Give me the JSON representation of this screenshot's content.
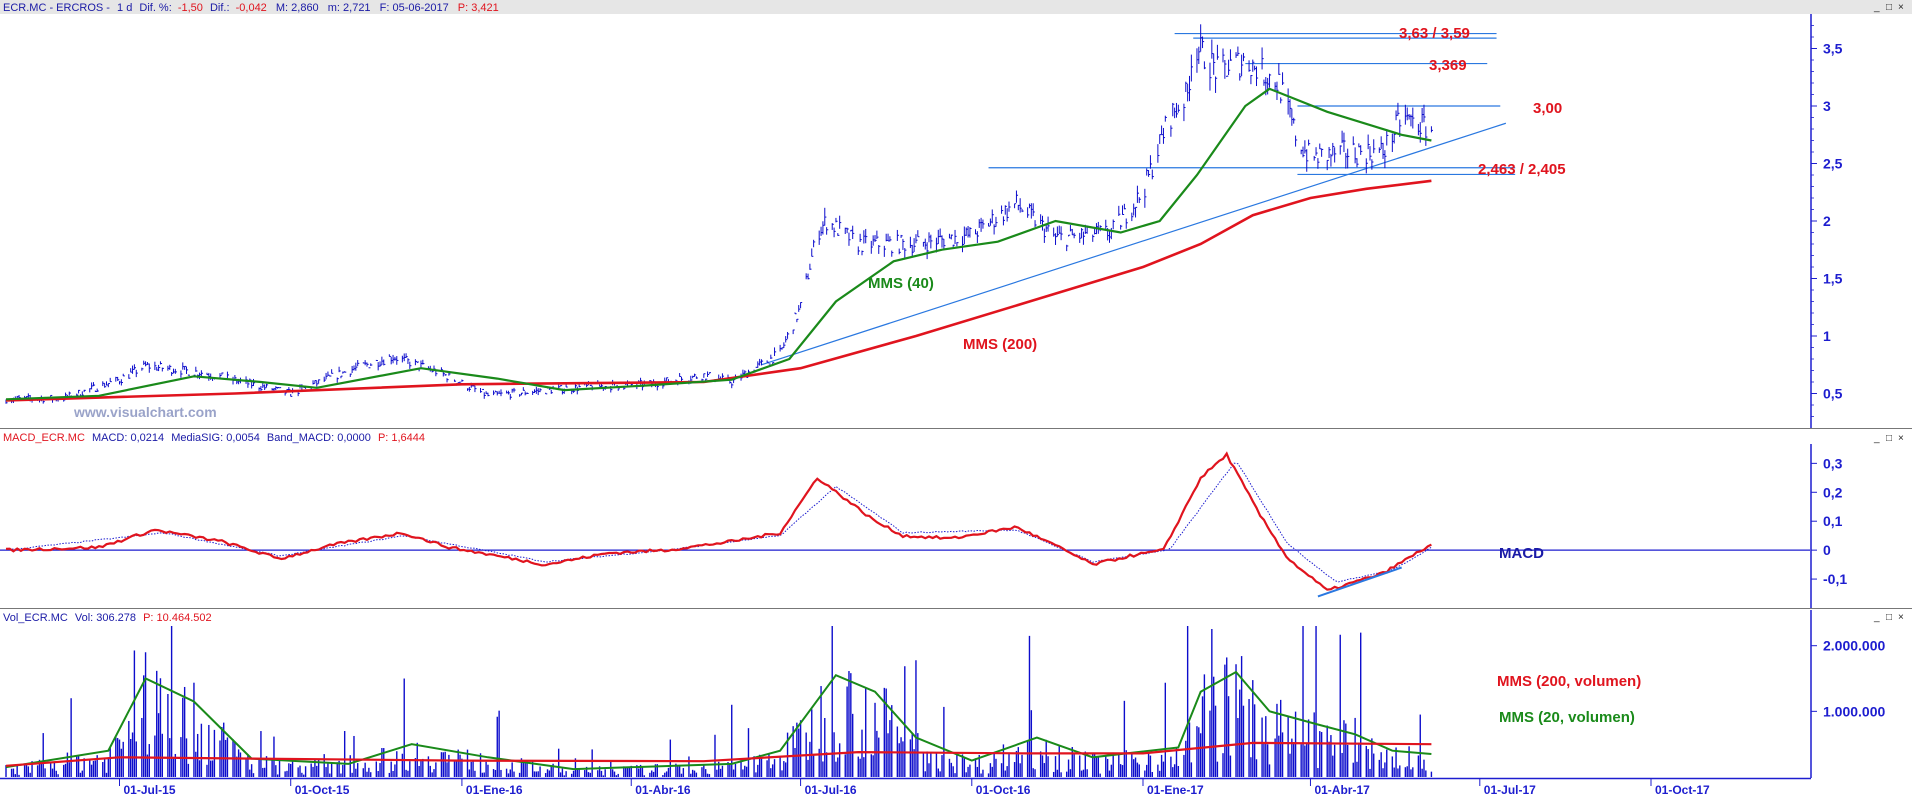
{
  "colors": {
    "price": "#0d0dcc",
    "ma_green": "#1a8a1a",
    "ma_red": "#e0141e",
    "axis_text": "#1d1dcf",
    "header_bg": "#e6e6e6"
  },
  "window_buttons": [
    "_",
    "□",
    "×"
  ],
  "main_panel": {
    "header": {
      "symbol": "ECR.MC - ERCROS -",
      "interval": "1 d",
      "dif_pct_label": "Dif. %:",
      "dif_pct": "-1,50",
      "dif_label": "Dif.:",
      "dif": "-0,042",
      "max": "M: 2,860",
      "min": "m: 2,721",
      "date": "F: 05-06-2017",
      "price": "P: 3,421"
    },
    "watermark": "www.visualchart.com",
    "y_ticks": [
      "3,5",
      "3",
      "2,5",
      "2",
      "1,5",
      "1",
      "0,5"
    ],
    "level_labels": [
      "3,63 / 3,59",
      "3,369",
      "3,00",
      "2,463 / 2,405"
    ],
    "annotations": {
      "mms40": "MMS (40)",
      "mms200": "MMS (200)"
    }
  },
  "macd_panel": {
    "header": {
      "name": "MACD_ECR.MC",
      "macd": "MACD: 0,0214",
      "signal": "MediaSIG: 0,0054",
      "band": "Band_MACD: 0,0000",
      "price": "P: 1,6444"
    },
    "y_ticks": [
      "0,3",
      "0,2",
      "0,1",
      "0",
      "-0,1"
    ],
    "label": "MACD"
  },
  "volume_panel": {
    "header": {
      "name": "Vol_ECR.MC",
      "vol": "Vol: 306.278",
      "price": "P: 10.464.502"
    },
    "y_ticks": [
      "2.000.000",
      "1.000.000"
    ],
    "legend": [
      "MMS (200, volumen)",
      "MMS (20, volumen)"
    ]
  },
  "x_ticks": [
    "01-Jul-15",
    "01-Oct-15",
    "01-Ene-16",
    "01-Abr-16",
    "01-Jul-16",
    "01-Oct-16",
    "01-Ene-17",
    "01-Abr-17",
    "01-Jul-17",
    "01-Oct-17"
  ],
  "chart_data": [
    {
      "type": "line",
      "title": "ECR.MC - ERCROS - 1 d",
      "x_ticks": [
        "01-Jul-15",
        "01-Oct-15",
        "01-Ene-16",
        "01-Abr-16",
        "01-Jul-16",
        "01-Oct-16",
        "01-Ene-17",
        "01-Abr-17",
        "01-Jul-17",
        "01-Oct-17"
      ],
      "ylim": [
        0.2,
        3.8
      ],
      "series": [
        {
          "name": "",
          "points": [
            [
              "2015-05-01",
              0.45
            ],
            [
              "2015-06-01",
              0.46
            ],
            [
              "2015-07-01",
              0.62
            ],
            [
              "2015-07-15",
              0.74
            ],
            [
              "2015-08-15",
              0.68
            ],
            [
              "2015-09-10",
              0.58
            ],
            [
              "2015-10-01",
              0.5
            ],
            [
              "2015-11-01",
              0.7
            ],
            [
              "2015-11-25",
              0.82
            ],
            [
              "2015-12-20",
              0.68
            ],
            [
              "2016-01-15",
              0.48
            ],
            [
              "2016-02-10",
              0.52
            ],
            [
              "2016-03-10",
              0.56
            ],
            [
              "2016-04-10",
              0.58
            ],
            [
              "2016-05-10",
              0.66
            ],
            [
              "2016-05-25",
              0.6
            ],
            [
              "2016-06-20",
              0.85
            ],
            [
              "2016-07-01",
              1.25
            ],
            [
              "2016-07-10",
              1.9
            ],
            [
              "2016-07-15",
              2.0
            ],
            [
              "2016-08-01",
              1.8
            ],
            [
              "2016-09-01",
              1.8
            ],
            [
              "2016-10-01",
              1.88
            ],
            [
              "2016-10-25",
              2.15
            ],
            [
              "2016-11-15",
              1.85
            ],
            [
              "2016-12-15",
              1.9
            ],
            [
              "2017-01-01",
              2.25
            ],
            [
              "2017-01-15",
              2.9
            ],
            [
              "2017-01-25",
              3.1
            ],
            [
              "2017-01-28",
              3.55
            ],
            [
              "2017-02-10",
              3.3
            ],
            [
              "2017-02-25",
              3.4
            ],
            [
              "2017-03-15",
              3.2
            ],
            [
              "2017-03-25",
              2.7
            ],
            [
              "2017-04-01",
              2.55
            ],
            [
              "2017-04-20",
              2.6
            ],
            [
              "2017-05-10",
              2.6
            ],
            [
              "2017-05-20",
              2.9
            ],
            [
              "2017-06-05",
              2.8
            ]
          ]
        },
        {
          "name": "MMS (40)",
          "points": [
            [
              "2015-05-01",
              0.45
            ],
            [
              "2015-06-20",
              0.48
            ],
            [
              "2015-08-10",
              0.65
            ],
            [
              "2015-09-15",
              0.6
            ],
            [
              "2015-10-15",
              0.55
            ],
            [
              "2015-12-10",
              0.72
            ],
            [
              "2016-01-20",
              0.63
            ],
            [
              "2016-02-25",
              0.53
            ],
            [
              "2016-04-10",
              0.57
            ],
            [
              "2016-05-25",
              0.62
            ],
            [
              "2016-06-25",
              0.8
            ],
            [
              "2016-07-20",
              1.3
            ],
            [
              "2016-08-20",
              1.65
            ],
            [
              "2016-09-15",
              1.75
            ],
            [
              "2016-10-15",
              1.82
            ],
            [
              "2016-11-15",
              2.0
            ],
            [
              "2016-12-20",
              1.9
            ],
            [
              "2017-01-10",
              2.0
            ],
            [
              "2017-01-30",
              2.4
            ],
            [
              "2017-02-25",
              3.0
            ],
            [
              "2017-03-10",
              3.15
            ],
            [
              "2017-04-10",
              2.95
            ],
            [
              "2017-05-20",
              2.75
            ],
            [
              "2017-06-05",
              2.7
            ]
          ]
        },
        {
          "name": "MMS (200)",
          "points": [
            [
              "2015-05-01",
              0.44
            ],
            [
              "2015-09-01",
              0.5
            ],
            [
              "2016-01-01",
              0.58
            ],
            [
              "2016-05-10",
              0.6
            ],
            [
              "2016-07-01",
              0.72
            ],
            [
              "2016-09-01",
              1.0
            ],
            [
              "2016-11-01",
              1.3
            ],
            [
              "2017-01-01",
              1.6
            ],
            [
              "2017-02-01",
              1.8
            ],
            [
              "2017-03-01",
              2.05
            ],
            [
              "2017-04-01",
              2.2
            ],
            [
              "2017-05-01",
              2.28
            ],
            [
              "2017-06-05",
              2.35
            ]
          ]
        },
        {
          "name": "",
          "points": [
            [
              "2016-06-10",
              0.75
            ],
            [
              "2017-07-15",
              2.85
            ]
          ]
        }
      ],
      "levels": [
        {
          "label": "3,63 / 3,59",
          "value": 3.63,
          "from": "2017-01-18",
          "to": "2017-07-10"
        },
        {
          "value": 3.59,
          "from": "2017-01-28",
          "to": "2017-07-10"
        },
        {
          "label": "3,369",
          "value": 3.369,
          "from": "2017-02-25",
          "to": "2017-07-05"
        },
        {
          "label": "3,00",
          "value": 3.0,
          "from": "2017-03-25",
          "to": "2017-07-12"
        },
        {
          "label": "2,463 / 2,405",
          "value": 2.463,
          "from": "2016-10-10",
          "to": "2017-07-20"
        },
        {
          "value": 2.405,
          "from": "2017-03-25",
          "to": "2017-07-20"
        }
      ]
    },
    {
      "type": "line",
      "title": "MACD_ECR.MC",
      "ylim": [
        -0.2,
        0.36
      ],
      "series": [
        {
          "name": "MACD",
          "points": [
            [
              "2015-05-01",
              0.0
            ],
            [
              "2015-06-20",
              0.01
            ],
            [
              "2015-07-20",
              0.07
            ],
            [
              "2015-08-25",
              0.03
            ],
            [
              "2015-09-25",
              -0.03
            ],
            [
              "2015-10-25",
              0.02
            ],
            [
              "2015-11-30",
              0.06
            ],
            [
              "2015-12-25",
              0.01
            ],
            [
              "2016-01-20",
              -0.02
            ],
            [
              "2016-02-15",
              -0.05
            ],
            [
              "2016-03-20",
              -0.01
            ],
            [
              "2016-04-20",
              0.0
            ],
            [
              "2016-05-25",
              0.03
            ],
            [
              "2016-06-20",
              0.06
            ],
            [
              "2016-07-10",
              0.25
            ],
            [
              "2016-08-10",
              0.1
            ],
            [
              "2016-08-25",
              0.05
            ],
            [
              "2016-09-20",
              0.04
            ],
            [
              "2016-10-25",
              0.08
            ],
            [
              "2016-11-20",
              0.0
            ],
            [
              "2016-12-05",
              -0.05
            ],
            [
              "2016-12-25",
              -0.02
            ],
            [
              "2017-01-12",
              0.0
            ],
            [
              "2017-02-01",
              0.25
            ],
            [
              "2017-02-15",
              0.33
            ],
            [
              "2017-03-05",
              0.12
            ],
            [
              "2017-03-20",
              -0.03
            ],
            [
              "2017-04-10",
              -0.14
            ],
            [
              "2017-05-10",
              -0.08
            ],
            [
              "2017-06-05",
              0.02
            ]
          ]
        },
        {
          "name": "MediaSIG",
          "points": [
            [
              "2015-05-01",
              0.0
            ],
            [
              "2015-07-25",
              0.06
            ],
            [
              "2015-09-25",
              -0.02
            ],
            [
              "2015-12-01",
              0.05
            ],
            [
              "2016-02-15",
              -0.04
            ],
            [
              "2016-04-20",
              0.0
            ],
            [
              "2016-06-20",
              0.05
            ],
            [
              "2016-07-20",
              0.22
            ],
            [
              "2016-08-25",
              0.06
            ],
            [
              "2016-10-25",
              0.07
            ],
            [
              "2016-12-05",
              -0.04
            ],
            [
              "2017-01-15",
              0.0
            ],
            [
              "2017-02-20",
              0.31
            ],
            [
              "2017-03-20",
              0.02
            ],
            [
              "2017-04-15",
              -0.11
            ],
            [
              "2017-05-15",
              -0.07
            ],
            [
              "2017-06-05",
              0.01
            ]
          ]
        },
        {
          "name": "",
          "points": [
            [
              "2017-04-05",
              -0.16
            ],
            [
              "2017-05-20",
              -0.06
            ]
          ]
        }
      ]
    },
    {
      "type": "bar",
      "title": "Vol_ECR.MC",
      "ylim": [
        0,
        2300000
      ],
      "bar_spikes": [
        [
          "2015-06-05",
          1200000
        ],
        [
          "2015-06-20",
          2100000
        ],
        [
          "2015-07-05",
          2200000
        ],
        [
          "2015-07-15",
          1900000
        ],
        [
          "2015-09-15",
          700000
        ],
        [
          "2015-12-01",
          1500000
        ],
        [
          "2016-05-25",
          1100000
        ],
        [
          "2016-07-10",
          2200000
        ],
        [
          "2016-07-18",
          2300000
        ],
        [
          "2016-09-25",
          900000
        ],
        [
          "2016-11-01",
          2150000
        ],
        [
          "2017-01-25",
          2300000
        ],
        [
          "2017-02-05",
          2200000
        ],
        [
          "2017-02-25",
          2250000
        ],
        [
          "2017-04-25",
          900000
        ]
      ],
      "series": [
        {
          "name": "MMS (200, volumen)",
          "points": [
            [
              "2015-05-01",
              170000
            ],
            [
              "2015-07-01",
              300000
            ],
            [
              "2016-01-01",
              250000
            ],
            [
              "2016-05-10",
              240000
            ],
            [
              "2016-08-01",
              380000
            ],
            [
              "2016-11-01",
              360000
            ],
            [
              "2017-01-01",
              360000
            ],
            [
              "2017-03-01",
              520000
            ],
            [
              "2017-06-05",
              500000
            ]
          ]
        },
        {
          "name": "MMS (20, volumen)",
          "points": [
            [
              "2015-05-01",
              150000
            ],
            [
              "2015-06-25",
              400000
            ],
            [
              "2015-07-15",
              1500000
            ],
            [
              "2015-08-10",
              1150000
            ],
            [
              "2015-09-10",
              280000
            ],
            [
              "2015-11-01",
              200000
            ],
            [
              "2015-12-05",
              500000
            ],
            [
              "2016-01-15",
              300000
            ],
            [
              "2016-03-01",
              120000
            ],
            [
              "2016-05-25",
              200000
            ],
            [
              "2016-06-20",
              400000
            ],
            [
              "2016-07-20",
              1550000
            ],
            [
              "2016-08-10",
              1300000
            ],
            [
              "2016-09-01",
              600000
            ],
            [
              "2016-10-01",
              250000
            ],
            [
              "2016-11-05",
              600000
            ],
            [
              "2016-12-05",
              300000
            ],
            [
              "2017-01-20",
              450000
            ],
            [
              "2017-02-01",
              1300000
            ],
            [
              "2017-02-20",
              1600000
            ],
            [
              "2017-03-10",
              1000000
            ],
            [
              "2017-04-05",
              800000
            ],
            [
              "2017-04-25",
              650000
            ],
            [
              "2017-05-15",
              400000
            ],
            [
              "2017-06-05",
              350000
            ]
          ]
        }
      ]
    }
  ]
}
